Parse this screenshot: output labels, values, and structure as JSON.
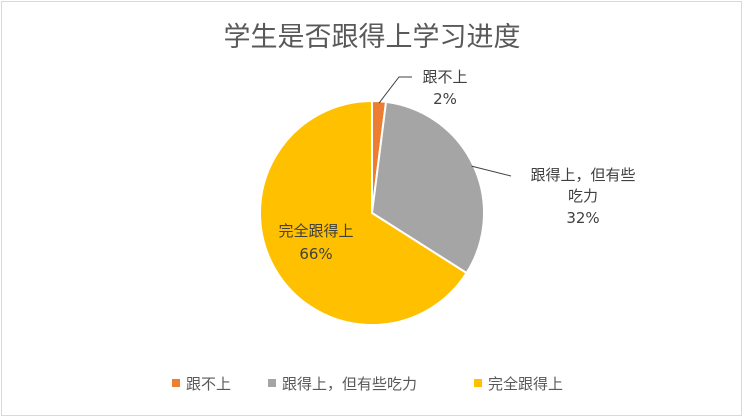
{
  "chart_data": {
    "type": "pie",
    "title": "学生是否跟得上学习进度",
    "slices": [
      {
        "label": "跟不上",
        "label_lines": [
          "跟不上"
        ],
        "value": 2,
        "value_text": "2%",
        "color": "#ED7D31"
      },
      {
        "label": "跟得上，但有些吃力",
        "label_lines": [
          "跟得上，但有些",
          "吃力"
        ],
        "value": 32,
        "value_text": "32%",
        "color": "#A5A5A5"
      },
      {
        "label": "完全跟得上",
        "label_lines": [
          "完全跟得上"
        ],
        "value": 66,
        "value_text": "66%",
        "color": "#FFC000"
      }
    ],
    "legend_position": "bottom",
    "legend": [
      "跟不上",
      "跟得上，但有些吃力",
      "完全跟得上"
    ]
  }
}
